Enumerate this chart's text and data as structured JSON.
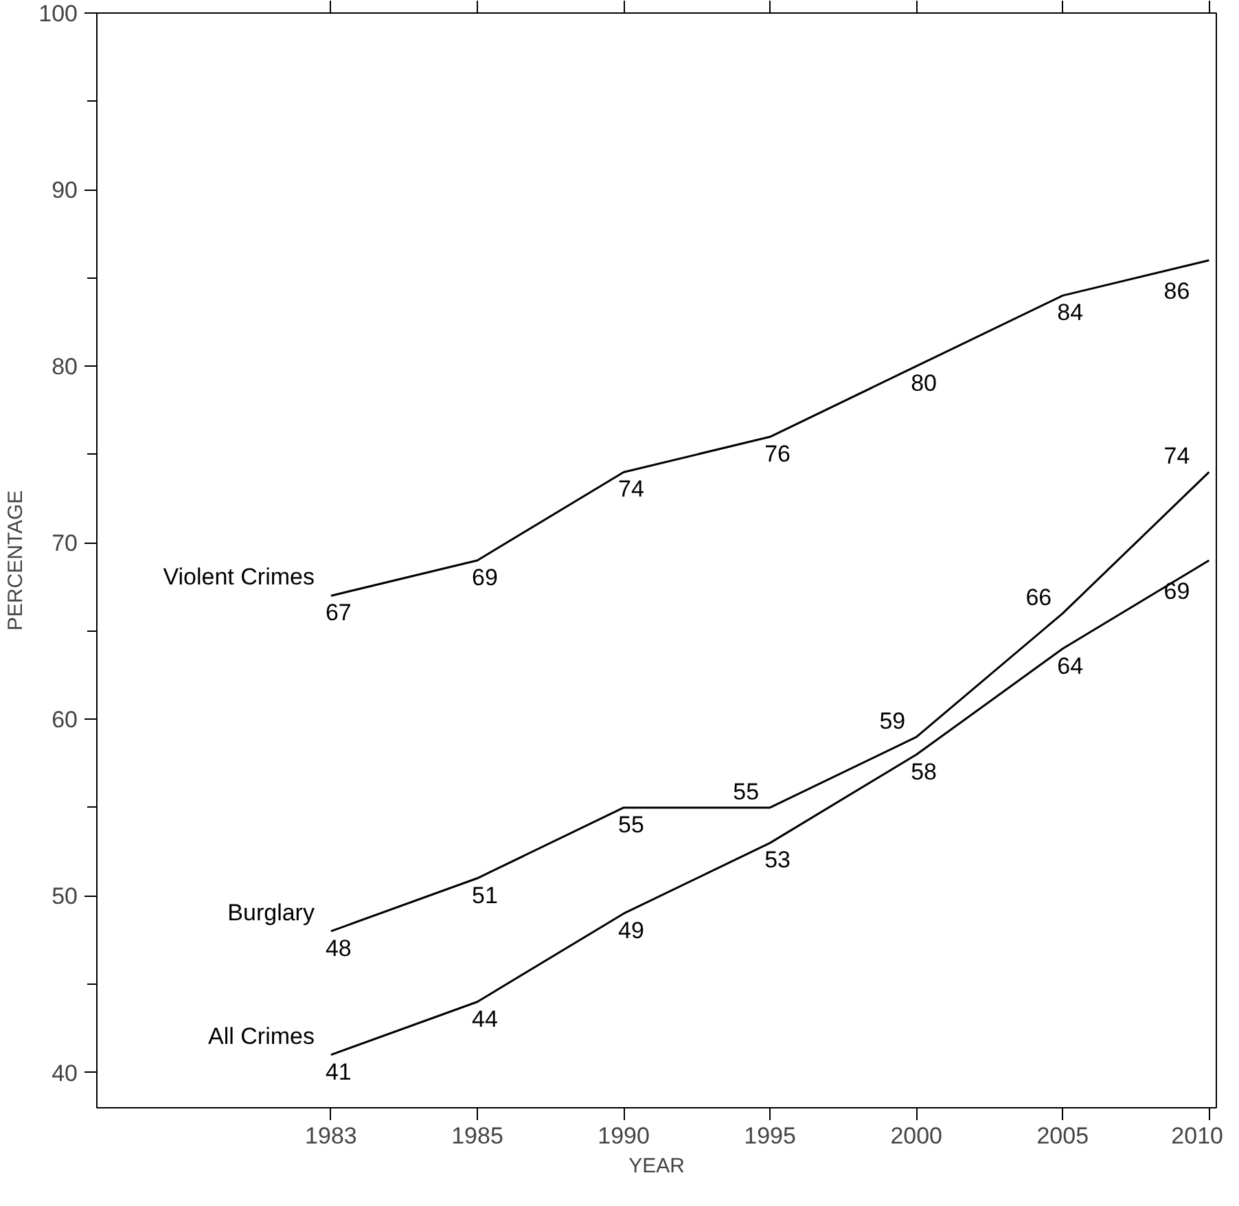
{
  "chart_data": {
    "type": "line",
    "xlabel": "YEAR",
    "ylabel": "PERCENTAGE",
    "categories": [
      "1983",
      "1985",
      "1990",
      "1995",
      "2000",
      "2005",
      "2010"
    ],
    "series": [
      {
        "name": "Violent Crimes",
        "color": "#000000",
        "values": [
          67,
          69,
          74,
          76,
          80,
          84,
          86
        ]
      },
      {
        "name": "Burglary",
        "color": "#000000",
        "values": [
          48,
          51,
          55,
          55,
          59,
          66,
          74
        ]
      },
      {
        "name": "All Crimes",
        "color": "#000000",
        "values": [
          41,
          44,
          49,
          53,
          58,
          64,
          69
        ]
      }
    ],
    "ylim": [
      38,
      100
    ],
    "yticks": [
      40,
      50,
      60,
      70,
      80,
      90,
      100
    ],
    "data_labels": true,
    "grid": false,
    "marker": "none",
    "line_style": "solid"
  }
}
